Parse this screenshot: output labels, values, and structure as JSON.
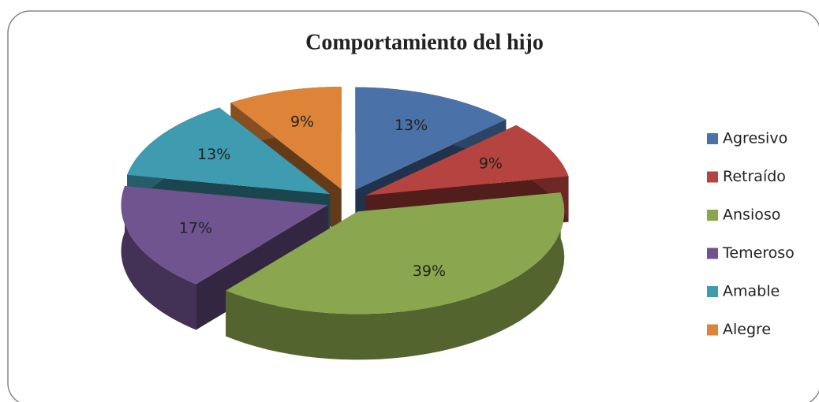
{
  "chart_data": {
    "type": "pie",
    "title": "Comportamiento del hijo",
    "categories": [
      "Agresivo",
      "Retraído",
      "Ansioso",
      "Temeroso",
      "Amable",
      "Alegre"
    ],
    "values": [
      13,
      9,
      39,
      17,
      13,
      9
    ],
    "value_labels": [
      "13%",
      "9%",
      "39%",
      "17%",
      "13%",
      "9%"
    ],
    "colors": [
      "#4a72a8",
      "#b5433f",
      "#8aa64e",
      "#6f5490",
      "#3e9bb0",
      "#dd8438"
    ],
    "legend": "right"
  }
}
